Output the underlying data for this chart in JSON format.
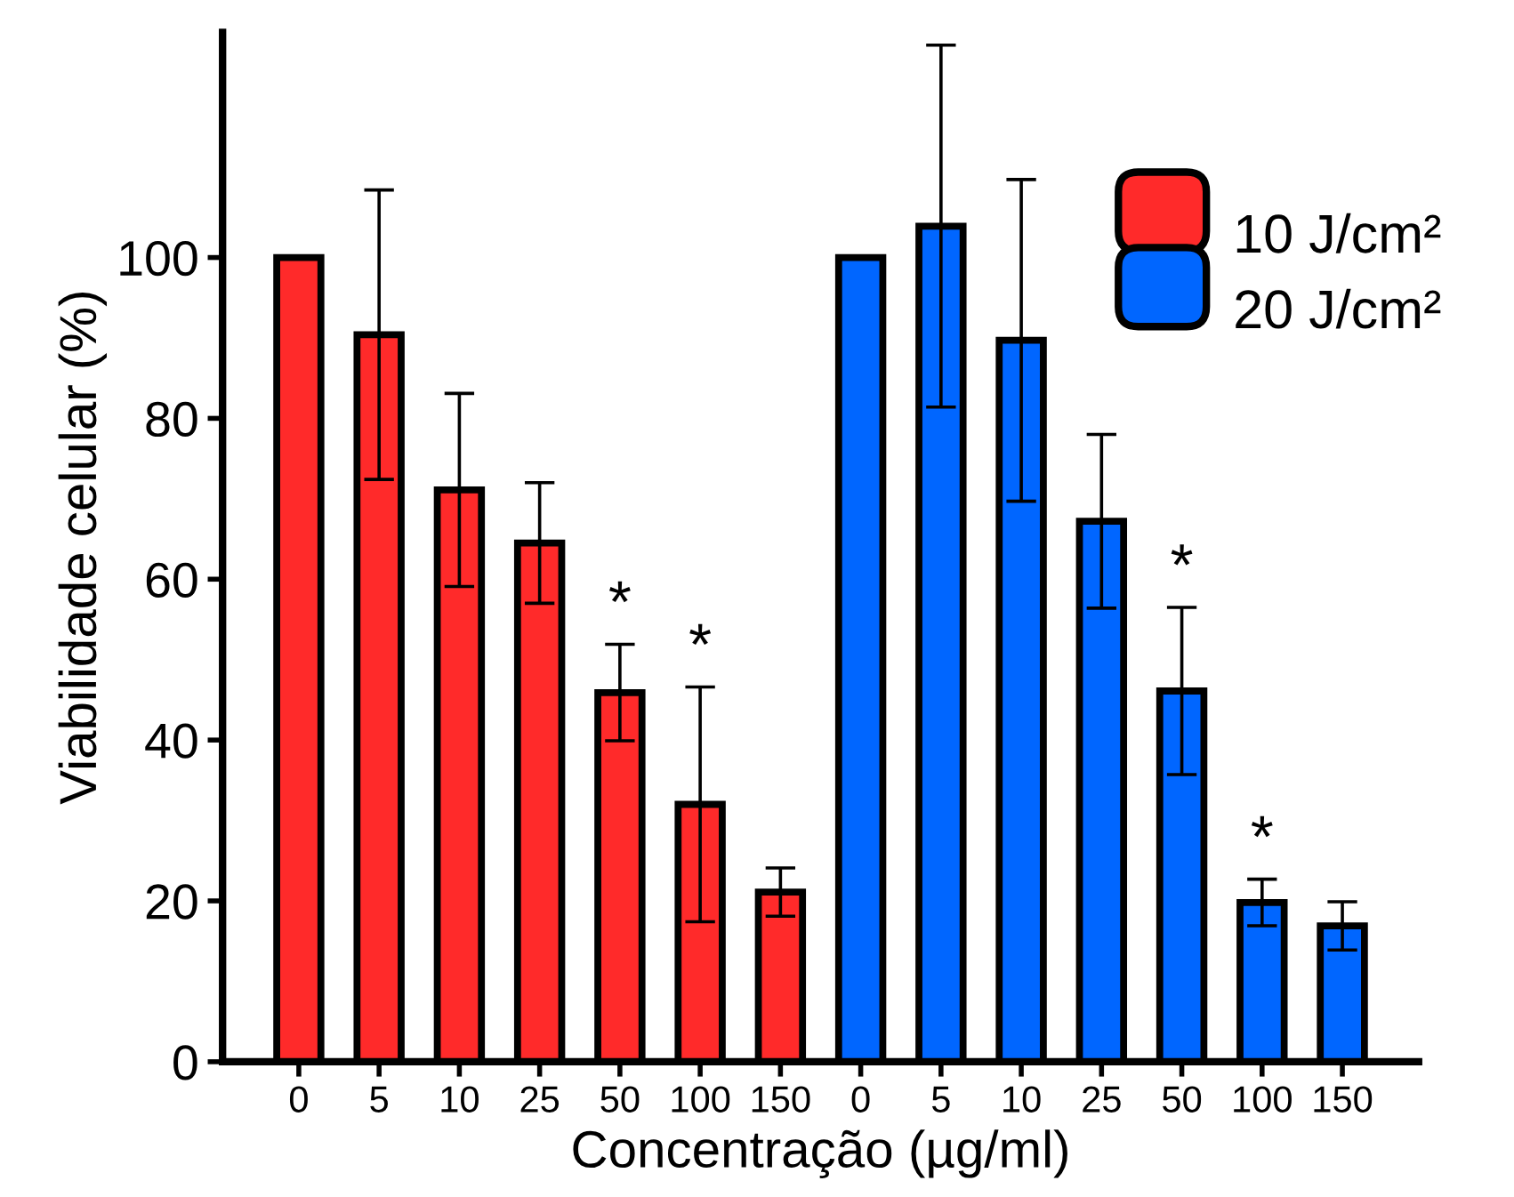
{
  "chart_data": {
    "type": "bar",
    "xlabel": "Concentração (µg/ml)",
    "ylabel": "Viabilidade celular (%)",
    "categories": [
      "0",
      "5",
      "10",
      "25",
      "50",
      "100",
      "150",
      "0",
      "5",
      "10",
      "25",
      "50",
      "100",
      "150"
    ],
    "series": [
      {
        "name": "10 J/cm²",
        "color": "#ff2a2a",
        "values": [
          100,
          90.4,
          71.1,
          64.5,
          45.9,
          32.0,
          21.1,
          null,
          null,
          null,
          null,
          null,
          null,
          null
        ],
        "errors": [
          null,
          18,
          12,
          7.5,
          6,
          14.6,
          3,
          null,
          null,
          null,
          null,
          null,
          null,
          null
        ],
        "value_labels": [
          null,
          null,
          null,
          null,
          "*",
          "*",
          null,
          null,
          null,
          null,
          null,
          null,
          null,
          null
        ]
      },
      {
        "name": "20 J/cm²",
        "color": "#0066ff",
        "values": [
          null,
          null,
          null,
          null,
          null,
          null,
          null,
          100,
          103.9,
          89.7,
          67.2,
          46.1,
          19.8,
          16.9
        ],
        "errors": [
          null,
          null,
          null,
          null,
          null,
          null,
          null,
          null,
          22.5,
          20,
          10.8,
          10.4,
          2.9,
          3
        ],
        "value_labels": [
          null,
          null,
          null,
          null,
          null,
          null,
          null,
          null,
          null,
          null,
          null,
          "*",
          "*",
          null
        ]
      }
    ],
    "ylim": [
      0,
      128
    ],
    "yticks": [
      0,
      20,
      40,
      60,
      80,
      100
    ],
    "grid": false,
    "legend": "top right"
  }
}
